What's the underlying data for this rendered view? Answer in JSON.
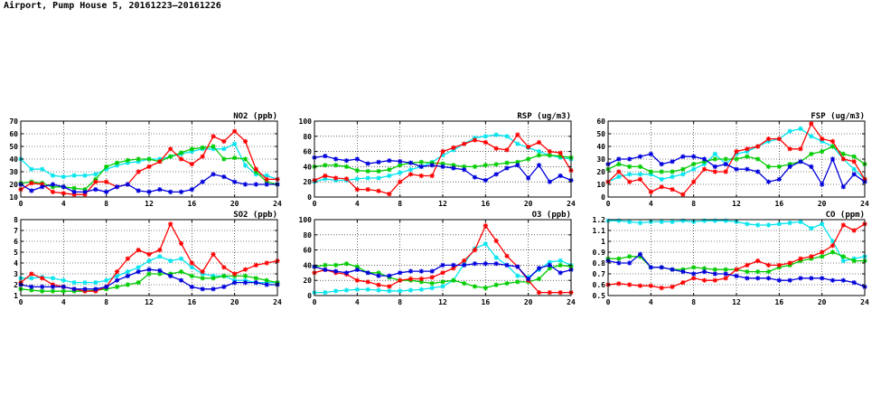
{
  "page_title": "Airport, Pump House 5, 20161223–20161226",
  "series_colors": [
    "#00e5ee",
    "#00cc00",
    "#ff0000",
    "#0000dd"
  ],
  "chart_data": [
    {
      "type": "line",
      "title": "NO2 (ppb)",
      "xlim": [
        0,
        24
      ],
      "ylim": [
        10,
        70
      ],
      "xticks": [
        0,
        4,
        8,
        12,
        16,
        20,
        24
      ],
      "yticks": [
        10,
        20,
        30,
        40,
        50,
        60,
        70
      ],
      "grid": true,
      "x": [
        0,
        1,
        2,
        3,
        4,
        5,
        6,
        7,
        8,
        9,
        10,
        11,
        12,
        13,
        14,
        15,
        16,
        17,
        18,
        19,
        20,
        21,
        22,
        23,
        24
      ],
      "series": [
        {
          "color": "#00e5ee",
          "values": [
            40,
            32,
            32,
            27,
            26,
            27,
            27,
            28,
            32,
            35,
            37,
            38,
            40,
            40,
            42,
            44,
            46,
            48,
            48,
            48,
            52,
            35,
            28,
            27,
            24
          ]
        },
        {
          "color": "#00cc00",
          "values": [
            21,
            22,
            21,
            18,
            18,
            17,
            16,
            24,
            34,
            37,
            39,
            40,
            40,
            38,
            42,
            45,
            48,
            49,
            50,
            40,
            41,
            40,
            30,
            22,
            20
          ]
        },
        {
          "color": "#ff0000",
          "values": [
            16,
            21,
            20,
            14,
            13,
            12,
            12,
            22,
            22,
            18,
            20,
            30,
            34,
            38,
            48,
            40,
            36,
            42,
            58,
            54,
            62,
            54,
            32,
            24,
            24
          ]
        },
        {
          "color": "#0000dd",
          "values": [
            20,
            15,
            18,
            20,
            18,
            14,
            14,
            16,
            14,
            18,
            20,
            15,
            14,
            16,
            14,
            14,
            16,
            22,
            28,
            26,
            22,
            20,
            20,
            20,
            20
          ]
        }
      ]
    },
    {
      "type": "line",
      "title": "RSP (ug/m3)",
      "xlim": [
        0,
        24
      ],
      "ylim": [
        0,
        100
      ],
      "xticks": [
        0,
        4,
        8,
        12,
        16,
        20,
        24
      ],
      "yticks": [
        0,
        20,
        40,
        60,
        80,
        100
      ],
      "grid": true,
      "x": [
        0,
        1,
        2,
        3,
        4,
        5,
        6,
        7,
        8,
        9,
        10,
        11,
        12,
        13,
        14,
        15,
        16,
        17,
        18,
        19,
        20,
        21,
        22,
        23,
        24
      ],
      "series": [
        {
          "color": "#00e5ee",
          "values": [
            20,
            24,
            22,
            22,
            24,
            25,
            25,
            28,
            32,
            36,
            40,
            46,
            55,
            62,
            70,
            78,
            80,
            82,
            80,
            70,
            65,
            60,
            55,
            52,
            50
          ]
        },
        {
          "color": "#00cc00",
          "values": [
            40,
            42,
            42,
            40,
            35,
            34,
            34,
            36,
            42,
            45,
            46,
            45,
            44,
            42,
            40,
            40,
            42,
            43,
            45,
            46,
            50,
            55,
            55,
            54,
            52
          ]
        },
        {
          "color": "#ff0000",
          "values": [
            22,
            28,
            25,
            24,
            10,
            10,
            8,
            4,
            20,
            30,
            28,
            28,
            60,
            65,
            70,
            75,
            72,
            64,
            62,
            82,
            66,
            72,
            60,
            58,
            35
          ]
        },
        {
          "color": "#0000dd",
          "values": [
            52,
            54,
            50,
            48,
            50,
            44,
            46,
            48,
            47,
            45,
            40,
            42,
            40,
            38,
            36,
            26,
            22,
            30,
            38,
            42,
            25,
            42,
            20,
            28,
            22
          ]
        }
      ]
    },
    {
      "type": "line",
      "title": "FSP (ug/m3)",
      "xlim": [
        0,
        24
      ],
      "ylim": [
        0,
        60
      ],
      "xticks": [
        0,
        4,
        8,
        12,
        16,
        20,
        24
      ],
      "yticks": [
        0,
        10,
        20,
        30,
        40,
        50,
        60
      ],
      "grid": true,
      "x": [
        0,
        1,
        2,
        3,
        4,
        5,
        6,
        7,
        8,
        9,
        10,
        11,
        12,
        13,
        14,
        15,
        16,
        17,
        18,
        19,
        20,
        21,
        22,
        23,
        24
      ],
      "series": [
        {
          "color": "#00e5ee",
          "values": [
            12,
            16,
            18,
            18,
            18,
            14,
            16,
            18,
            22,
            26,
            34,
            26,
            34,
            36,
            40,
            44,
            46,
            52,
            54,
            48,
            44,
            40,
            30,
            22,
            14
          ]
        },
        {
          "color": "#00cc00",
          "values": [
            22,
            26,
            24,
            24,
            20,
            20,
            20,
            22,
            26,
            28,
            30,
            30,
            30,
            32,
            30,
            24,
            24,
            26,
            28,
            34,
            36,
            40,
            34,
            32,
            26
          ]
        },
        {
          "color": "#ff0000",
          "values": [
            12,
            20,
            12,
            14,
            4,
            8,
            6,
            2,
            12,
            22,
            20,
            20,
            36,
            38,
            40,
            46,
            46,
            38,
            38,
            58,
            46,
            44,
            30,
            28,
            14
          ]
        },
        {
          "color": "#0000dd",
          "values": [
            26,
            30,
            30,
            32,
            34,
            26,
            28,
            32,
            32,
            30,
            24,
            26,
            22,
            22,
            20,
            12,
            14,
            24,
            28,
            24,
            10,
            30,
            8,
            18,
            12
          ]
        }
      ]
    },
    {
      "type": "line",
      "title": "SO2 (ppb)",
      "xlim": [
        0,
        24
      ],
      "ylim": [
        1,
        8
      ],
      "xticks": [
        0,
        4,
        8,
        12,
        16,
        20,
        24
      ],
      "yticks": [
        1,
        2,
        3,
        4,
        5,
        6,
        7,
        8
      ],
      "grid": true,
      "x": [
        0,
        1,
        2,
        3,
        4,
        5,
        6,
        7,
        8,
        9,
        10,
        11,
        12,
        13,
        14,
        15,
        16,
        17,
        18,
        19,
        20,
        21,
        22,
        23,
        24
      ],
      "series": [
        {
          "color": "#00e5ee",
          "values": [
            2.6,
            2.6,
            2.7,
            2.6,
            2.4,
            2.2,
            2.2,
            2.2,
            2.4,
            2.8,
            3.2,
            3.6,
            4.2,
            4.6,
            4.2,
            4.4,
            3.6,
            3.0,
            2.8,
            2.8,
            2.4,
            2.4,
            2.2,
            2.2,
            2.2
          ]
        },
        {
          "color": "#00cc00",
          "values": [
            1.6,
            1.5,
            1.4,
            1.4,
            1.4,
            1.4,
            1.4,
            1.5,
            1.6,
            1.8,
            2.0,
            2.2,
            3.0,
            3.0,
            3.0,
            3.2,
            2.8,
            2.6,
            2.6,
            2.8,
            2.8,
            2.8,
            2.6,
            2.4,
            2.2
          ]
        },
        {
          "color": "#ff0000",
          "values": [
            2.2,
            3.0,
            2.6,
            2.0,
            1.8,
            1.6,
            1.4,
            1.4,
            1.8,
            3.2,
            4.4,
            5.2,
            4.8,
            5.2,
            7.6,
            5.8,
            4.0,
            3.2,
            4.8,
            3.6,
            3.0,
            3.4,
            3.8,
            4.0,
            4.2
          ]
        },
        {
          "color": "#0000dd",
          "values": [
            2.0,
            1.8,
            1.8,
            1.8,
            1.8,
            1.6,
            1.6,
            1.6,
            1.8,
            2.4,
            2.8,
            3.2,
            3.4,
            3.3,
            2.8,
            2.4,
            1.8,
            1.6,
            1.6,
            1.8,
            2.2,
            2.2,
            2.2,
            2.0,
            2.0
          ]
        }
      ]
    },
    {
      "type": "line",
      "title": "O3 (ppb)",
      "xlim": [
        0,
        24
      ],
      "ylim": [
        0,
        100
      ],
      "xticks": [
        0,
        4,
        8,
        12,
        16,
        20,
        24
      ],
      "yticks": [
        0,
        20,
        40,
        60,
        80,
        100
      ],
      "grid": true,
      "x": [
        0,
        1,
        2,
        3,
        4,
        5,
        6,
        7,
        8,
        9,
        10,
        11,
        12,
        13,
        14,
        15,
        16,
        17,
        18,
        19,
        20,
        21,
        22,
        23,
        24
      ],
      "series": [
        {
          "color": "#00e5ee",
          "values": [
            4,
            4,
            6,
            7,
            8,
            8,
            7,
            6,
            6,
            7,
            8,
            10,
            12,
            20,
            42,
            62,
            68,
            50,
            40,
            26,
            24,
            34,
            44,
            46,
            40
          ]
        },
        {
          "color": "#00cc00",
          "values": [
            38,
            40,
            40,
            42,
            38,
            30,
            30,
            24,
            20,
            20,
            18,
            16,
            18,
            20,
            16,
            12,
            10,
            14,
            16,
            18,
            18,
            22,
            36,
            40,
            38
          ]
        },
        {
          "color": "#ff0000",
          "values": [
            30,
            34,
            30,
            28,
            20,
            18,
            14,
            12,
            20,
            22,
            22,
            24,
            30,
            36,
            46,
            60,
            92,
            72,
            52,
            38,
            20,
            4,
            4,
            4,
            4
          ]
        },
        {
          "color": "#0000dd",
          "values": [
            38,
            34,
            32,
            30,
            34,
            30,
            26,
            26,
            30,
            32,
            32,
            32,
            40,
            40,
            40,
            42,
            42,
            42,
            40,
            38,
            22,
            36,
            40,
            30,
            34
          ]
        }
      ]
    },
    {
      "type": "line",
      "title": "CO (ppm)",
      "xlim": [
        0,
        24
      ],
      "ylim": [
        0.5,
        1.2
      ],
      "xticks": [
        0,
        4,
        8,
        12,
        16,
        20,
        24
      ],
      "yticks": [
        0.5,
        0.6,
        0.7,
        0.8,
        0.9,
        1.0,
        1.1,
        1.2
      ],
      "grid": true,
      "x": [
        0,
        1,
        2,
        3,
        4,
        5,
        6,
        7,
        8,
        9,
        10,
        11,
        12,
        13,
        14,
        15,
        16,
        17,
        18,
        19,
        20,
        21,
        22,
        23,
        24
      ],
      "series": [
        {
          "color": "#00e5ee",
          "values": [
            1.19,
            1.19,
            1.18,
            1.17,
            1.18,
            1.18,
            1.18,
            1.19,
            1.18,
            1.19,
            1.19,
            1.19,
            1.18,
            1.16,
            1.15,
            1.15,
            1.16,
            1.17,
            1.18,
            1.12,
            1.16,
            1.0,
            0.82,
            0.84,
            0.86
          ]
        },
        {
          "color": "#00cc00",
          "values": [
            0.84,
            0.84,
            0.86,
            0.86,
            0.76,
            0.76,
            0.74,
            0.74,
            0.76,
            0.75,
            0.74,
            0.74,
            0.74,
            0.72,
            0.72,
            0.72,
            0.76,
            0.78,
            0.82,
            0.84,
            0.86,
            0.9,
            0.86,
            0.82,
            0.82
          ]
        },
        {
          "color": "#ff0000",
          "values": [
            0.6,
            0.61,
            0.6,
            0.59,
            0.59,
            0.57,
            0.58,
            0.62,
            0.66,
            0.64,
            0.64,
            0.66,
            0.74,
            0.78,
            0.82,
            0.78,
            0.78,
            0.8,
            0.84,
            0.86,
            0.9,
            0.96,
            1.15,
            1.1,
            1.16
          ]
        },
        {
          "color": "#0000dd",
          "values": [
            0.82,
            0.8,
            0.8,
            0.88,
            0.76,
            0.76,
            0.74,
            0.72,
            0.7,
            0.72,
            0.7,
            0.7,
            0.68,
            0.66,
            0.66,
            0.66,
            0.64,
            0.64,
            0.66,
            0.66,
            0.66,
            0.64,
            0.64,
            0.62,
            0.58
          ]
        }
      ]
    }
  ]
}
